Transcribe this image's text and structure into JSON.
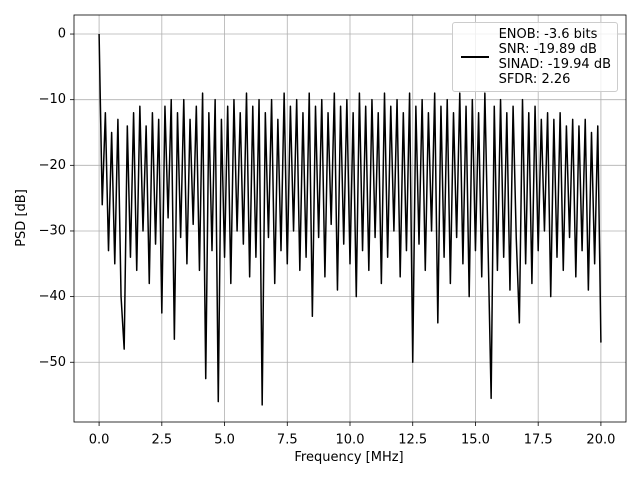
{
  "chart_data": {
    "type": "line",
    "xlabel": "Frequency [MHz]",
    "ylabel": "PSD [dB]",
    "x": [
      0,
      0.125,
      0.25,
      0.375,
      0.5,
      0.625,
      0.75,
      0.875,
      1,
      1.125,
      1.25,
      1.375,
      1.5,
      1.625,
      1.75,
      1.875,
      2,
      2.125,
      2.25,
      2.375,
      2.5,
      2.625,
      2.75,
      2.875,
      3,
      3.125,
      3.25,
      3.375,
      3.5,
      3.625,
      3.75,
      3.875,
      4,
      4.125,
      4.25,
      4.375,
      4.5,
      4.625,
      4.75,
      4.875,
      5,
      5.125,
      5.25,
      5.375,
      5.5,
      5.625,
      5.75,
      5.875,
      6,
      6.125,
      6.25,
      6.375,
      6.5,
      6.625,
      6.75,
      6.875,
      7,
      7.125,
      7.25,
      7.375,
      7.5,
      7.625,
      7.75,
      7.875,
      8,
      8.125,
      8.25,
      8.375,
      8.5,
      8.625,
      8.75,
      8.875,
      9,
      9.125,
      9.25,
      9.375,
      9.5,
      9.625,
      9.75,
      9.875,
      10,
      10.125,
      10.25,
      10.375,
      10.5,
      10.625,
      10.75,
      10.875,
      11,
      11.125,
      11.25,
      11.375,
      11.5,
      11.625,
      11.75,
      11.875,
      12,
      12.125,
      12.25,
      12.375,
      12.5,
      12.625,
      12.75,
      12.875,
      13,
      13.125,
      13.25,
      13.375,
      13.5,
      13.625,
      13.75,
      13.875,
      14,
      14.125,
      14.25,
      14.375,
      14.5,
      14.625,
      14.75,
      14.875,
      15,
      15.125,
      15.25,
      15.375,
      15.5,
      15.625,
      15.75,
      15.875,
      16,
      16.125,
      16.25,
      16.375,
      16.5,
      16.625,
      16.75,
      16.875,
      17,
      17.125,
      17.25,
      17.375,
      17.5,
      17.625,
      17.75,
      17.875,
      18,
      18.125,
      18.25,
      18.375,
      18.5,
      18.625,
      18.75,
      18.875,
      19,
      19.125,
      19.25,
      19.375,
      19.5,
      19.625,
      19.75,
      19.875,
      20
    ],
    "series": [
      {
        "name": "ENOB: -3.6 bits\nSNR: -19.89 dB\nSINAD: -19.94 dB\nSFDR: 2.26",
        "color": "#000000",
        "values": [
          0,
          -26,
          -12,
          -33,
          -15,
          -35,
          -13,
          -40,
          -48,
          -14,
          -34,
          -12,
          -36,
          -11,
          -30,
          -14,
          -38,
          -12,
          -32,
          -13,
          -42.5,
          -11,
          -28,
          -10,
          -46.5,
          -12,
          -31,
          -10,
          -35,
          -13,
          -29,
          -11,
          -36,
          -9,
          -52.5,
          -12,
          -33,
          -10,
          -56,
          -13,
          -34,
          -11,
          -38,
          -10,
          -30,
          -12,
          -32,
          -9,
          -37,
          -11,
          -34,
          -10,
          -56.5,
          -12,
          -31,
          -10,
          -38,
          -13,
          -33,
          -9,
          -35,
          -11,
          -30,
          -10,
          -36,
          -12,
          -34,
          -9,
          -43,
          -11,
          -31,
          -10,
          -37,
          -12,
          -29,
          -9,
          -39,
          -11,
          -32,
          -10,
          -35,
          -12,
          -40,
          -9,
          -33,
          -11,
          -36,
          -10,
          -31,
          -12,
          -38,
          -9,
          -34,
          -11,
          -30,
          -10,
          -37,
          -12,
          -33,
          -9,
          -50,
          -11,
          -32,
          -10,
          -36,
          -12,
          -30,
          -9,
          -44,
          -11,
          -34,
          -10,
          -38,
          -12,
          -31,
          -9,
          -35,
          -11,
          -40,
          -10,
          -33,
          -12,
          -37,
          -9,
          -32,
          -55.5,
          -11,
          -36,
          -10,
          -34,
          -12,
          -39,
          -11,
          -31,
          -44,
          -10,
          -35,
          -12,
          -38,
          -11,
          -33,
          -13,
          -30,
          -12,
          -40,
          -13,
          -34,
          -12,
          -36,
          -14,
          -31,
          -13,
          -37,
          -14,
          -33,
          -13,
          -39,
          -15,
          -35,
          -14,
          -47
        ]
      }
    ],
    "xlim": [
      -1,
      21
    ],
    "ylim": [
      -59.1,
      2.9
    ],
    "xticks": [
      {
        "value": 0,
        "label": "0.0"
      },
      {
        "value": 2.5,
        "label": "2.5"
      },
      {
        "value": 5,
        "label": "5.0"
      },
      {
        "value": 7.5,
        "label": "7.5"
      },
      {
        "value": 10,
        "label": "10.0"
      },
      {
        "value": 12.5,
        "label": "12.5"
      },
      {
        "value": 15,
        "label": "15.0"
      },
      {
        "value": 17.5,
        "label": "17.5"
      },
      {
        "value": 20,
        "label": "20.0"
      }
    ],
    "yticks": [
      {
        "value": -50,
        "label": "−50"
      },
      {
        "value": -40,
        "label": "−40"
      },
      {
        "value": -30,
        "label": "−30"
      },
      {
        "value": -20,
        "label": "−20"
      },
      {
        "value": -10,
        "label": "−10"
      },
      0
    ],
    "grid": true,
    "legend": "upper right"
  }
}
